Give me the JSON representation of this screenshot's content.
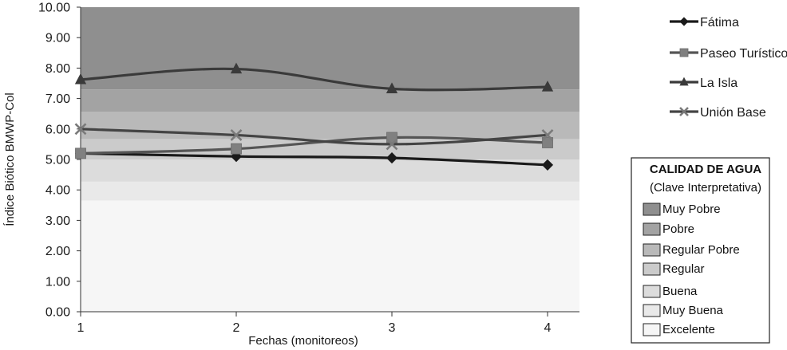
{
  "chart_data": {
    "type": "line",
    "x": [
      1,
      2,
      3,
      4
    ],
    "xlabel": "Fechas (monitoreos)",
    "ylabel": "Índice Biótico BMWP-Col",
    "ylim": [
      0,
      10
    ],
    "y_ticks": [
      "0.00",
      "1.00",
      "2.00",
      "3.00",
      "4.00",
      "5.00",
      "6.00",
      "7.00",
      "8.00",
      "9.00",
      "10.00"
    ],
    "x_ticks": [
      "1",
      "2",
      "3",
      "4"
    ],
    "legend_position": "right",
    "series": [
      {
        "name": "Fátima",
        "values": [
          5.2,
          5.1,
          5.05,
          4.82
        ],
        "marker": "diamond",
        "color": "#1a1a1a"
      },
      {
        "name": "Paseo Turístico",
        "values": [
          5.2,
          5.35,
          5.72,
          5.55
        ],
        "marker": "square",
        "color": "#555555"
      },
      {
        "name": "La Isla",
        "values": [
          7.62,
          7.97,
          7.32,
          7.38
        ],
        "marker": "triangle",
        "color": "#3a3a3a"
      },
      {
        "name": "Unión Base",
        "values": [
          6.0,
          5.8,
          5.5,
          5.8
        ],
        "marker": "x",
        "color": "#444444"
      }
    ],
    "quality_bands": [
      {
        "label": "Muy Pobre",
        "from": 7.3,
        "to": 10.0,
        "color": "#8f8f8f"
      },
      {
        "label": "Pobre",
        "from": 6.57,
        "to": 7.3,
        "color": "#a3a3a3"
      },
      {
        "label": "Regular Pobre",
        "from": 5.67,
        "to": 6.57,
        "color": "#b9b9b9"
      },
      {
        "label": "Regular",
        "from": 5.0,
        "to": 5.67,
        "color": "#cbcbcb"
      },
      {
        "label": "Buena",
        "from": 4.27,
        "to": 5.0,
        "color": "#dcdcdc"
      },
      {
        "label": "Muy Buena",
        "from": 3.65,
        "to": 4.27,
        "color": "#e9e9e9"
      },
      {
        "label": "Excelente",
        "from": 0.0,
        "to": 3.65,
        "color": "#f6f6f6"
      }
    ],
    "key_title": "CALIDAD DE AGUA",
    "key_subtitle": "(Clave Interpretativa)"
  }
}
